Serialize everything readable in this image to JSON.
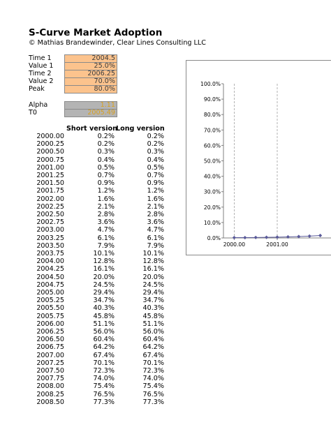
{
  "header": {
    "title": "S-Curve Market Adoption",
    "copyright": "© Mathias Brandewinder, Clear Lines Consulting LLC"
  },
  "params": [
    {
      "label": "Time 1",
      "value": "2004.5"
    },
    {
      "label": "Value 1",
      "value": "25.0%"
    },
    {
      "label": "Time 2",
      "value": "2006.25"
    },
    {
      "label": "Value 2",
      "value": "70.0%"
    },
    {
      "label": "Peak",
      "value": "80.0%"
    }
  ],
  "computed": [
    {
      "label": "Alpha",
      "value": "1.11"
    },
    {
      "label": "T0",
      "value": "2005.49"
    }
  ],
  "table": {
    "headers": {
      "short": "Short version",
      "long": "Long version"
    },
    "rows": [
      [
        "2000.00",
        "0.2%",
        "0.2%"
      ],
      [
        "2000.25",
        "0.2%",
        "0.2%"
      ],
      [
        "2000.50",
        "0.3%",
        "0.3%"
      ],
      [
        "2000.75",
        "0.4%",
        "0.4%"
      ],
      [
        "2001.00",
        "0.5%",
        "0.5%"
      ],
      [
        "2001.25",
        "0.7%",
        "0.7%"
      ],
      [
        "2001.50",
        "0.9%",
        "0.9%"
      ],
      [
        "2001.75",
        "1.2%",
        "1.2%"
      ],
      [
        "2002.00",
        "1.6%",
        "1.6%"
      ],
      [
        "2002.25",
        "2.1%",
        "2.1%"
      ],
      [
        "2002.50",
        "2.8%",
        "2.8%"
      ],
      [
        "2002.75",
        "3.6%",
        "3.6%"
      ],
      [
        "2003.00",
        "4.7%",
        "4.7%"
      ],
      [
        "2003.25",
        "6.1%",
        "6.1%"
      ],
      [
        "2003.50",
        "7.9%",
        "7.9%"
      ],
      [
        "2003.75",
        "10.1%",
        "10.1%"
      ],
      [
        "2004.00",
        "12.8%",
        "12.8%"
      ],
      [
        "2004.25",
        "16.1%",
        "16.1%"
      ],
      [
        "2004.50",
        "20.0%",
        "20.0%"
      ],
      [
        "2004.75",
        "24.5%",
        "24.5%"
      ],
      [
        "2005.00",
        "29.4%",
        "29.4%"
      ],
      [
        "2005.25",
        "34.7%",
        "34.7%"
      ],
      [
        "2005.50",
        "40.3%",
        "40.3%"
      ],
      [
        "2005.75",
        "45.8%",
        "45.8%"
      ],
      [
        "2006.00",
        "51.1%",
        "51.1%"
      ],
      [
        "2006.25",
        "56.0%",
        "56.0%"
      ],
      [
        "2006.50",
        "60.4%",
        "60.4%"
      ],
      [
        "2006.75",
        "64.2%",
        "64.2%"
      ],
      [
        "2007.00",
        "67.4%",
        "67.4%"
      ],
      [
        "2007.25",
        "70.1%",
        "70.1%"
      ],
      [
        "2007.50",
        "72.3%",
        "72.3%"
      ],
      [
        "2007.75",
        "74.0%",
        "74.0%"
      ],
      [
        "2008.00",
        "75.4%",
        "75.4%"
      ],
      [
        "2008.25",
        "76.5%",
        "76.5%"
      ],
      [
        "2008.50",
        "77.3%",
        "77.3%"
      ]
    ]
  },
  "colors": {
    "input_fill": "#fcc38d",
    "computed_fill": "#b4b4b4",
    "computed_text": "#d8a020",
    "series": "#5a5a9a"
  },
  "chart_data": {
    "type": "line",
    "xlabel": "",
    "ylabel": "",
    "ylim": [
      0,
      1
    ],
    "y_ticks": [
      "0.0%",
      "10.0%",
      "20.0%",
      "30.0%",
      "40.0%",
      "50.0%",
      "60.0%",
      "70.0%",
      "80.0%",
      "90.0%",
      "100.0%"
    ],
    "x_ticks": [
      "2000.00",
      "2001.00"
    ],
    "xlim": [
      1999.75,
      2002.25
    ],
    "grid": "vertical dashed at each x tick",
    "marker": "diamond",
    "series": [
      {
        "x": [
          2000.0,
          2000.25,
          2000.5,
          2000.75,
          2001.0,
          2001.25,
          2001.5,
          2001.75,
          2002.0
        ],
        "values": [
          0.002,
          0.002,
          0.003,
          0.004,
          0.005,
          0.007,
          0.009,
          0.012,
          0.016
        ]
      }
    ]
  }
}
